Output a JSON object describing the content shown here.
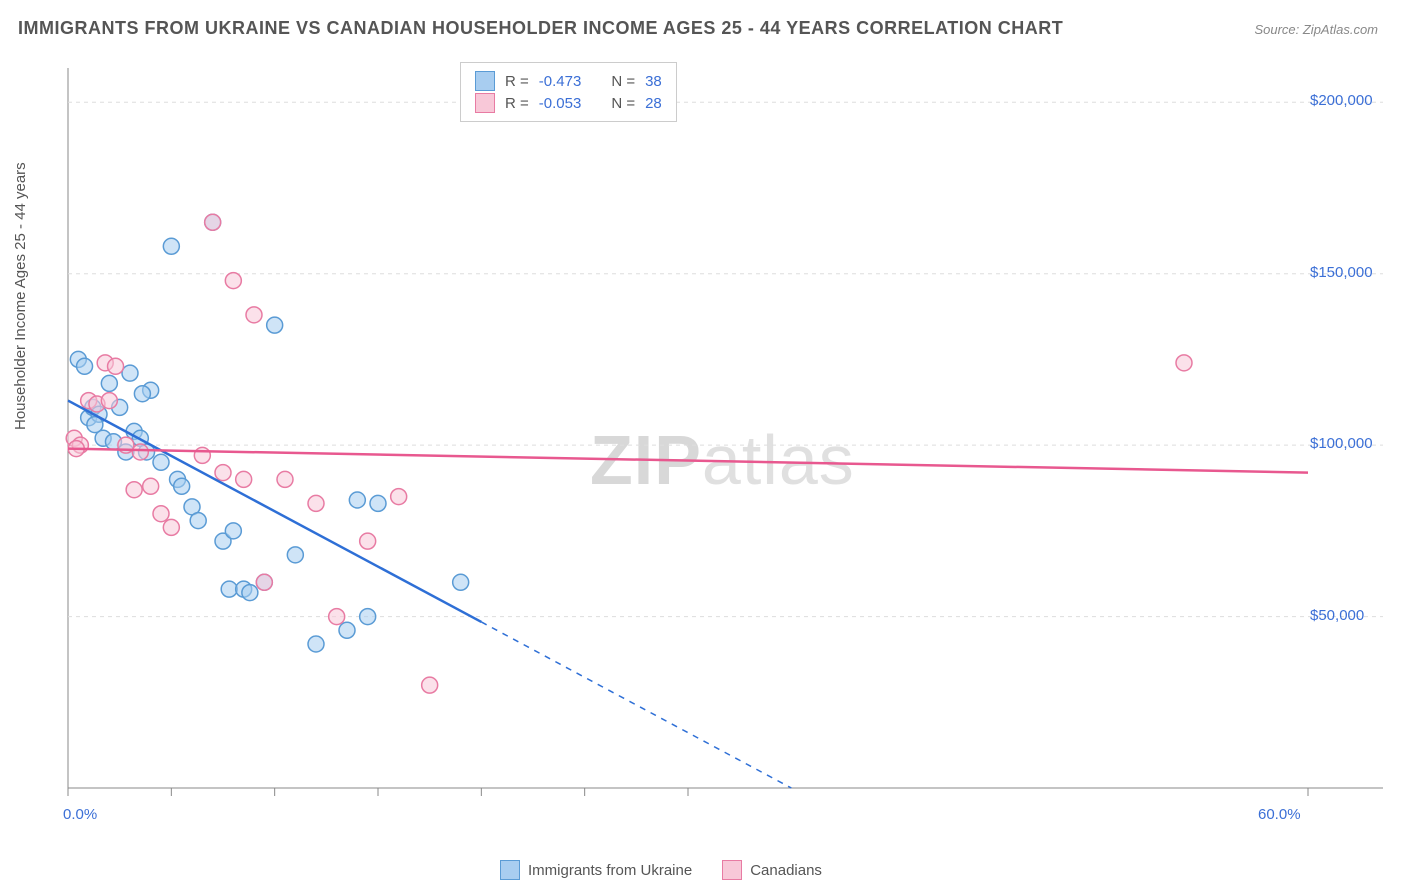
{
  "title": "IMMIGRANTS FROM UKRAINE VS CANADIAN HOUSEHOLDER INCOME AGES 25 - 44 YEARS CORRELATION CHART",
  "source": "Source: ZipAtlas.com",
  "watermark_bold": "ZIP",
  "watermark_rest": "atlas",
  "chart": {
    "type": "scatter",
    "y_axis_label": "Householder Income Ages 25 - 44 years",
    "xlim": [
      0,
      60
    ],
    "ylim": [
      0,
      210000
    ],
    "x_ticks": [
      0,
      5,
      10,
      15,
      20,
      25,
      30,
      60
    ],
    "x_tick_labels_shown": {
      "0": "0.0%",
      "60": "60.0%"
    },
    "y_grid": [
      50000,
      100000,
      150000,
      200000
    ],
    "y_tick_labels": {
      "50000": "$50,000",
      "100000": "$100,000",
      "150000": "$150,000",
      "200000": "$200,000"
    },
    "background_color": "#ffffff",
    "grid_color": "#dddddd",
    "axis_color": "#888888",
    "marker_radius": 8,
    "marker_stroke_width": 1.5,
    "trend_line_width": 2.5,
    "series": [
      {
        "key": "ukraine",
        "label": "Immigrants from Ukraine",
        "color_fill": "#a8cdf0",
        "color_stroke": "#5a9bd5",
        "trend_color": "#2e6fd6",
        "R": "-0.473",
        "N": "38",
        "trend": {
          "x1": 0,
          "y1": 113000,
          "x2": 35,
          "y2": 0,
          "solid_until_x": 20
        },
        "points": [
          [
            0.5,
            125000
          ],
          [
            0.8,
            123000
          ],
          [
            1.0,
            108000
          ],
          [
            1.2,
            111000
          ],
          [
            1.5,
            109000
          ],
          [
            1.7,
            102000
          ],
          [
            2.0,
            118000
          ],
          [
            2.2,
            101000
          ],
          [
            2.5,
            111000
          ],
          [
            2.8,
            98000
          ],
          [
            3.0,
            121000
          ],
          [
            3.2,
            104000
          ],
          [
            3.5,
            102000
          ],
          [
            3.8,
            98000
          ],
          [
            4.0,
            116000
          ],
          [
            4.5,
            95000
          ],
          [
            5.0,
            158000
          ],
          [
            5.3,
            90000
          ],
          [
            5.5,
            88000
          ],
          [
            6.0,
            82000
          ],
          [
            6.3,
            78000
          ],
          [
            7.0,
            165000
          ],
          [
            7.5,
            72000
          ],
          [
            7.8,
            58000
          ],
          [
            8.0,
            75000
          ],
          [
            8.5,
            58000
          ],
          [
            8.8,
            57000
          ],
          [
            9.5,
            60000
          ],
          [
            10.0,
            135000
          ],
          [
            11.0,
            68000
          ],
          [
            12.0,
            42000
          ],
          [
            13.5,
            46000
          ],
          [
            14.0,
            84000
          ],
          [
            14.5,
            50000
          ],
          [
            15.0,
            83000
          ],
          [
            19.0,
            60000
          ],
          [
            3.6,
            115000
          ],
          [
            1.3,
            106000
          ]
        ]
      },
      {
        "key": "canadians",
        "label": "Canadians",
        "color_fill": "#f8c8d8",
        "color_stroke": "#e87ba3",
        "trend_color": "#e8588f",
        "R": "-0.053",
        "N": "28",
        "trend": {
          "x1": 0,
          "y1": 99000,
          "x2": 60,
          "y2": 92000,
          "solid_until_x": 60
        },
        "points": [
          [
            0.3,
            102000
          ],
          [
            0.6,
            100000
          ],
          [
            1.0,
            113000
          ],
          [
            1.4,
            112000
          ],
          [
            1.8,
            124000
          ],
          [
            2.0,
            113000
          ],
          [
            2.3,
            123000
          ],
          [
            2.8,
            100000
          ],
          [
            3.2,
            87000
          ],
          [
            3.5,
            98000
          ],
          [
            4.0,
            88000
          ],
          [
            4.5,
            80000
          ],
          [
            5.0,
            76000
          ],
          [
            6.5,
            97000
          ],
          [
            7.0,
            165000
          ],
          [
            7.5,
            92000
          ],
          [
            8.0,
            148000
          ],
          [
            8.5,
            90000
          ],
          [
            9.0,
            138000
          ],
          [
            9.5,
            60000
          ],
          [
            10.5,
            90000
          ],
          [
            12.0,
            83000
          ],
          [
            13.0,
            50000
          ],
          [
            14.5,
            72000
          ],
          [
            16.0,
            85000
          ],
          [
            17.5,
            30000
          ],
          [
            54.0,
            124000
          ],
          [
            0.4,
            99000
          ]
        ]
      }
    ]
  },
  "legend_top": {
    "rows": [
      {
        "swatch_fill": "#a8cdf0",
        "swatch_stroke": "#5a9bd5",
        "r_label": "R =",
        "r_value": "-0.473",
        "n_label": "N =",
        "n_value": "38"
      },
      {
        "swatch_fill": "#f8c8d8",
        "swatch_stroke": "#e87ba3",
        "r_label": "R =",
        "r_value": "-0.053",
        "n_label": "N =",
        "n_value": "28"
      }
    ]
  },
  "legend_bottom": [
    {
      "swatch_fill": "#a8cdf0",
      "swatch_stroke": "#5a9bd5",
      "label": "Immigrants from Ukraine"
    },
    {
      "swatch_fill": "#f8c8d8",
      "swatch_stroke": "#e87ba3",
      "label": "Canadians"
    }
  ]
}
